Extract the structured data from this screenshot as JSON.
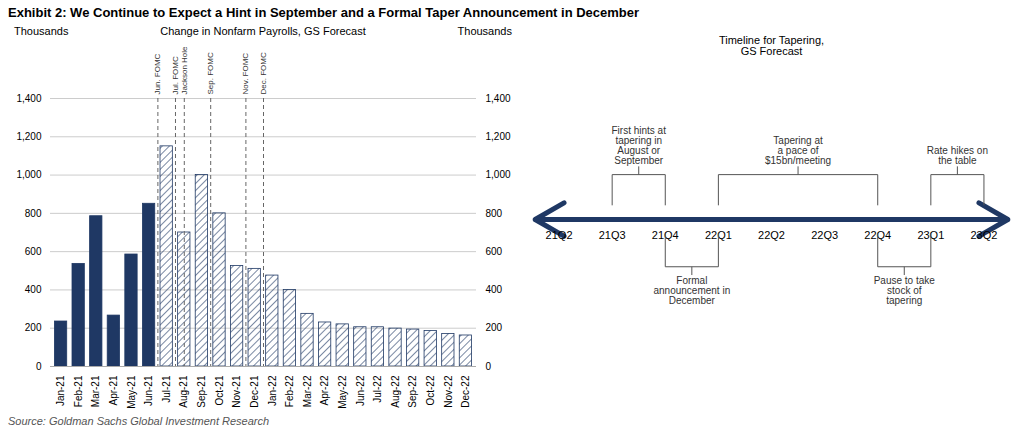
{
  "title": "Exhibit 2: We Continue to Expect a Hint in September and a Formal Taper Announcement in December",
  "source": "Source: Goldman Sachs Global Investment Research",
  "chart_data": [
    {
      "type": "bar",
      "title": "Change in Nonfarm Payrolls, GS Forecast",
      "ylabel": "Thousands",
      "y2label": "Thousands",
      "categories": [
        "Jan-21",
        "Feb-21",
        "Mar-21",
        "Apr-21",
        "May-21",
        "Jun-21",
        "Jul-21",
        "Aug-21",
        "Sep-21",
        "Oct-21",
        "Nov-21",
        "Dec-21",
        "Jan-22",
        "Feb-22",
        "Mar-22",
        "Apr-22",
        "May-22",
        "Jun-22",
        "Jul-22",
        "Aug-22",
        "Sep-22",
        "Oct-22",
        "Nov-22",
        "Dec-22"
      ],
      "values": [
        235,
        536,
        785,
        266,
        585,
        850,
        1150,
        700,
        1000,
        800,
        525,
        510,
        475,
        400,
        275,
        230,
        220,
        205,
        205,
        198,
        193,
        185,
        170,
        162
      ],
      "color": "#1f3864",
      "colors": [
        "#1f3864",
        "#1f3864",
        "#1f3864",
        "#1f3864",
        "#1f3864",
        "#1f3864",
        "white",
        "white",
        "white",
        "white",
        "white",
        "white",
        "white",
        "white",
        "white",
        "white",
        "white",
        "white",
        "white",
        "white",
        "white",
        "white",
        "white",
        "white"
      ],
      "ylim": [
        0,
        1400
      ],
      "yticks": [
        0,
        200,
        400,
        600,
        800,
        {
          "value": 1000,
          "label": "1,000"
        },
        {
          "value": 1200,
          "label": "1,200"
        },
        {
          "value": 1400,
          "label": "1,400"
        }
      ],
      "y2lim": [
        0,
        1400
      ],
      "y2ticks": [
        0,
        200,
        400,
        600,
        800,
        {
          "value": 1000,
          "label": "1,000"
        },
        {
          "value": 1200,
          "label": "1,200"
        },
        {
          "value": 1400,
          "label": "1,400"
        }
      ],
      "grid": true,
      "annotations": [
        {
          "x": 5.5,
          "label": "Jun. FOMC"
        },
        {
          "x": 6.5,
          "label": "Jul. FOMC"
        },
        {
          "x": 7.0,
          "label": "Jackson Hole"
        },
        {
          "x": 8.5,
          "label": "Sep. FOMC"
        },
        {
          "x": 10.5,
          "label": "Nov. FOMC"
        },
        {
          "x": 11.5,
          "label": "Dec. FOMC"
        }
      ]
    },
    {
      "type": "timeline",
      "title": "Timeline for Tapering,\nGS Forecast",
      "categories": [
        "21Q2",
        "21Q3",
        "21Q4",
        "22Q1",
        "22Q2",
        "22Q3",
        "22Q4",
        "23Q1",
        "23Q2"
      ],
      "color": "#1f3864",
      "annotations": [
        {
          "text": "First hints at\ntapering in\nAugust or\nSeptember",
          "from": "21Q3",
          "to": "21Q4",
          "position": "above"
        },
        {
          "text": "Tapering at\na pace of\n$15bn/meeting",
          "from": "22Q1",
          "to": "22Q4",
          "position": "above"
        },
        {
          "text": "Rate hikes on\nthe table",
          "from": "23Q1",
          "to": "23Q2",
          "position": "above"
        },
        {
          "text": "Formal\nannouncement in\nDecember",
          "from": "21Q4",
          "to": "22Q1",
          "position": "below"
        },
        {
          "text": "Pause to take\nstock of\ntapering",
          "from": "22Q4",
          "to": "23Q1",
          "position": "below"
        }
      ]
    }
  ]
}
